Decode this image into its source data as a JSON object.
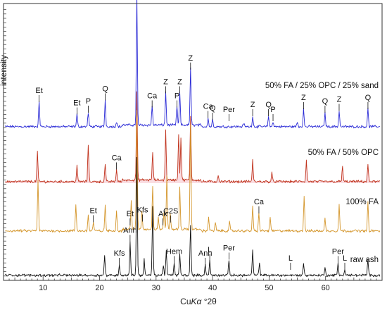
{
  "chart_data": {
    "type": "line",
    "xlabel_prefix": "Cu",
    "xlabel_italic": "Kα",
    "xlabel_suffix": " °2θ",
    "ylabel": "intensity",
    "xlim": [
      3,
      70
    ],
    "x_ticks": [
      10,
      20,
      30,
      40,
      50,
      60
    ],
    "grid": false,
    "legend": "none",
    "series": [
      {
        "name": "50% FA / 25% OPC / 25% sand",
        "color": "#2b2bd6",
        "fill": "none",
        "peaks": [
          [
            9.3,
            28
          ],
          [
            16.0,
            14
          ],
          [
            18.0,
            16
          ],
          [
            21.0,
            30
          ],
          [
            23.0,
            6
          ],
          [
            26.6,
            150
          ],
          [
            29.3,
            22
          ],
          [
            31.7,
            38
          ],
          [
            33.7,
            22
          ],
          [
            34.2,
            38
          ],
          [
            36.1,
            65
          ],
          [
            39.2,
            10
          ],
          [
            40.0,
            8
          ],
          [
            45.5,
            4
          ],
          [
            47.1,
            12
          ],
          [
            49.9,
            12
          ],
          [
            50.7,
            6
          ],
          [
            55.0,
            5
          ],
          [
            56.1,
            20
          ],
          [
            59.9,
            16
          ],
          [
            62.4,
            18
          ],
          [
            67.5,
            20
          ]
        ],
        "annotations": [
          {
            "label": "Et",
            "x": 9.3
          },
          {
            "label": "Et",
            "x": 16.0
          },
          {
            "label": "P",
            "x": 18.0
          },
          {
            "label": "Q",
            "x": 21.0
          },
          {
            "label": "Q",
            "x": 26.6
          },
          {
            "label": "Ca",
            "x": 29.3
          },
          {
            "label": "Z",
            "x": 31.7
          },
          {
            "label": "P",
            "x": 33.7
          },
          {
            "label": "Z",
            "x": 34.2
          },
          {
            "label": "Z",
            "x": 36.1
          },
          {
            "label": "Ca",
            "x": 39.2
          },
          {
            "label": "Q",
            "x": 40.0
          },
          {
            "label": "Per",
            "x": 42.9
          },
          {
            "label": "Z",
            "x": 47.1
          },
          {
            "label": "Q",
            "x": 49.9
          },
          {
            "label": "P",
            "x": 50.7
          },
          {
            "label": "Z",
            "x": 56.1
          },
          {
            "label": "Q",
            "x": 59.9
          },
          {
            "label": "Z",
            "x": 62.4
          },
          {
            "label": "Q",
            "x": 67.5
          }
        ]
      },
      {
        "name": "50% FA / 50% OPC",
        "color": "#c0341e",
        "fill": "#f6c6cf",
        "peaks": [
          [
            9.0,
            34
          ],
          [
            16.0,
            18
          ],
          [
            18.0,
            42
          ],
          [
            21.0,
            20
          ],
          [
            23.0,
            14
          ],
          [
            26.6,
            100
          ],
          [
            29.4,
            32
          ],
          [
            31.7,
            56
          ],
          [
            34.0,
            52
          ],
          [
            34.4,
            48
          ],
          [
            36.1,
            72
          ],
          [
            41.0,
            8
          ],
          [
            47.1,
            24
          ],
          [
            50.5,
            10
          ],
          [
            56.6,
            24
          ],
          [
            63.0,
            18
          ],
          [
            67.5,
            20
          ]
        ],
        "annotations": [
          {
            "label": "Ca",
            "x": 23.0
          }
        ]
      },
      {
        "name": "100% FA",
        "color": "#d4962c",
        "fill": "none",
        "peaks": [
          [
            9.1,
            58
          ],
          [
            15.8,
            30
          ],
          [
            18.0,
            18
          ],
          [
            18.9,
            10
          ],
          [
            21.0,
            30
          ],
          [
            23.0,
            22
          ],
          [
            25.6,
            32
          ],
          [
            26.6,
            135
          ],
          [
            27.5,
            20
          ],
          [
            29.4,
            50
          ],
          [
            30.4,
            14
          ],
          [
            31.4,
            18
          ],
          [
            31.9,
            62
          ],
          [
            32.5,
            18
          ],
          [
            34.2,
            48
          ],
          [
            36.1,
            120
          ],
          [
            39.3,
            16
          ],
          [
            40.5,
            10
          ],
          [
            43.0,
            10
          ],
          [
            47.1,
            28
          ],
          [
            48.2,
            20
          ],
          [
            50.2,
            16
          ],
          [
            56.2,
            40
          ],
          [
            59.9,
            14
          ],
          [
            62.4,
            30
          ],
          [
            67.5,
            32
          ]
        ],
        "annotations": [
          {
            "label": "Et",
            "x": 18.9
          },
          {
            "label": "Et",
            "x": 25.4
          },
          {
            "label": "Kfs",
            "x": 27.6
          },
          {
            "label": "Ak",
            "x": 31.2
          },
          {
            "label": "C2S",
            "x": 32.6
          },
          {
            "label": "Ca",
            "x": 48.2
          }
        ]
      },
      {
        "name": "raw ash",
        "color": "#111111",
        "fill": "none",
        "peaks": [
          [
            20.9,
            22
          ],
          [
            23.5,
            12
          ],
          [
            25.4,
            38
          ],
          [
            26.6,
            135
          ],
          [
            27.9,
            18
          ],
          [
            29.4,
            78
          ],
          [
            31.3,
            12
          ],
          [
            31.8,
            28
          ],
          [
            33.2,
            14
          ],
          [
            34.2,
            24
          ],
          [
            36.1,
            58
          ],
          [
            38.7,
            12
          ],
          [
            39.5,
            16
          ],
          [
            42.9,
            18
          ],
          [
            47.1,
            28
          ],
          [
            48.3,
            14
          ],
          [
            56.1,
            14
          ],
          [
            59.9,
            8
          ],
          [
            62.2,
            14
          ],
          [
            63.4,
            6
          ],
          [
            67.5,
            18
          ]
        ],
        "annotations": [
          {
            "label": "Kfs",
            "x": 23.5
          },
          {
            "label": "Anh",
            "x": 25.4
          },
          {
            "label": "Hem",
            "x": 33.2
          },
          {
            "label": "Anh",
            "x": 38.7
          },
          {
            "label": "L",
            "x": 39.5
          },
          {
            "label": "Per",
            "x": 42.9
          },
          {
            "label": "L",
            "x": 53.8
          },
          {
            "label": "Per",
            "x": 62.2
          },
          {
            "label": "L",
            "x": 63.4
          }
        ]
      }
    ]
  }
}
